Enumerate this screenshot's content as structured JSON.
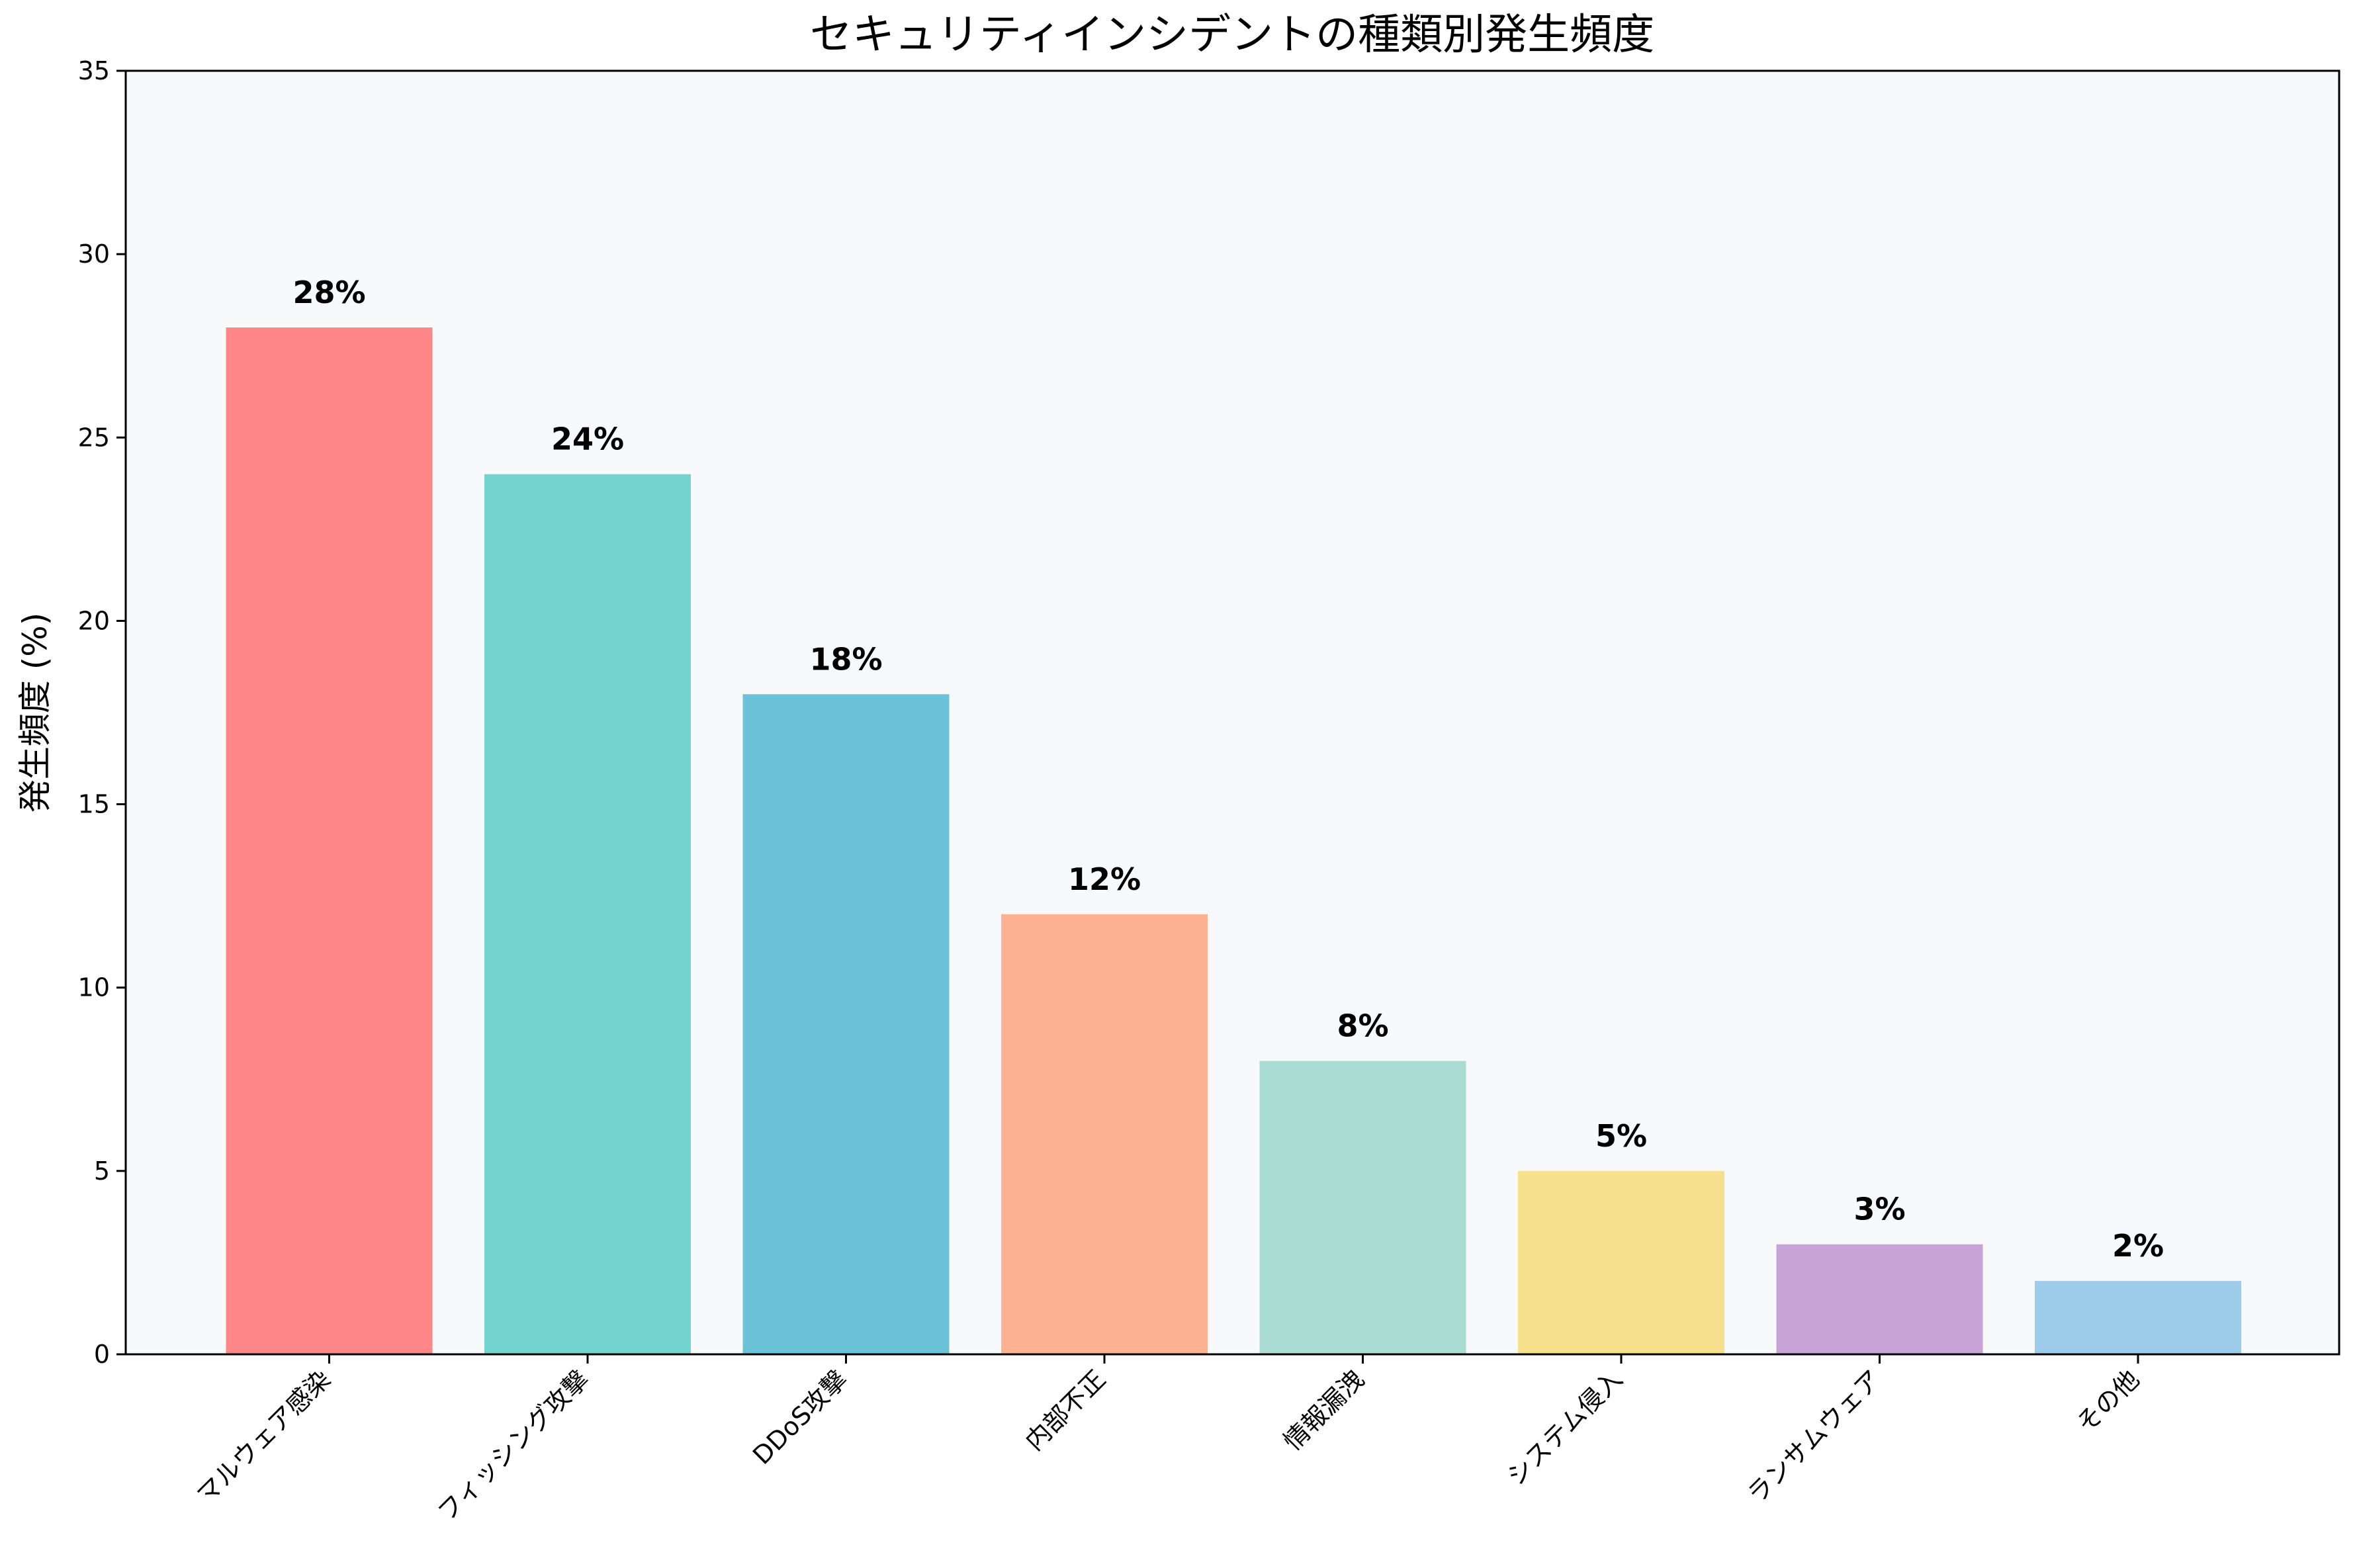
{
  "chart_data": {
    "type": "bar",
    "title": "セキュリティインシデントの種類別発生頻度",
    "xlabel": "",
    "ylabel": "発生頻度 (%)",
    "ylim": [
      0,
      35
    ],
    "yticks": [
      0,
      5,
      10,
      15,
      20,
      25,
      30,
      35
    ],
    "categories": [
      "マルウェア感染",
      "フィッシング攻撃",
      "DDoS攻撃",
      "内部不正",
      "情報漏洩",
      "システム侵入",
      "ランサムウェア",
      "その他"
    ],
    "values": [
      28,
      24,
      18,
      12,
      8,
      5,
      3,
      2
    ],
    "data_labels": [
      "28%",
      "24%",
      "18%",
      "12%",
      "8%",
      "5%",
      "3%",
      "2%"
    ],
    "colors": [
      "#FF8787",
      "#73D4CF",
      "#6BC3D9",
      "#FFB193",
      "#ABDCD2",
      "#F7E08B",
      "#C8A3D6",
      "#9DCCEB"
    ],
    "plot_background": "#F8F9FA",
    "grid": false,
    "legend": "none"
  }
}
